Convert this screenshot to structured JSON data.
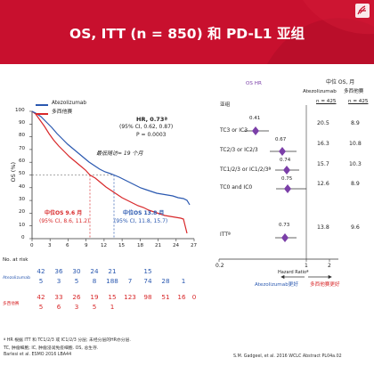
{
  "header": {
    "title": "OS, ITT (n = 850) 和 PD-L1 亚组",
    "bg_color": "#c8102e",
    "icon": "pdf-icon"
  },
  "km": {
    "legend": [
      {
        "label": "Atezolizumab",
        "color": "#2a58b0"
      },
      {
        "label": "多西他赛",
        "color": "#d8282a"
      }
    ],
    "hr_title": "HR, 0.73ª",
    "hr_ci": "(95% CI, 0.62, 0.87)",
    "hr_p": "P = 0.0003",
    "followup": "最低随访= 19 个月",
    "yaxis_label": "OS (%)",
    "yticks": [
      "100",
      "90",
      "80",
      "70",
      "60",
      "50",
      "40",
      "30",
      "20",
      "10",
      "0"
    ],
    "xticks": [
      "0",
      "3",
      "6",
      "9",
      "12",
      "15",
      "18",
      "21",
      "24",
      "27"
    ],
    "median_docetaxel_line1": "中位OS 9.6 月",
    "median_docetaxel_line2": "(95% CI, 8.6, 11.2)",
    "median_atezo_line1": "中位OS 13.8 月",
    "median_atezo_line2": "(95% CI, 11.8, 15.7)"
  },
  "risk": {
    "title": "No. at risk",
    "atezo_label": "Atezolizumab",
    "doc_label": "多西他赛",
    "atezo_row1": [
      "42",
      "36",
      "30",
      "24",
      "21",
      "15"
    ],
    "atezo_row2": [
      "5",
      "3",
      "5",
      "8",
      "188",
      "7",
      "74",
      "28",
      "1"
    ],
    "doc_row1": [
      "42",
      "33",
      "26",
      "19",
      "15",
      "123",
      "98",
      "51",
      "16",
      "0"
    ],
    "doc_row2": [
      "5",
      "6",
      "3",
      "5",
      "1"
    ]
  },
  "forest": {
    "os_hr_header": "OS HR",
    "median_header": "中位 OS, 月",
    "col_atezo": "Atezolizumab",
    "col_doc": "多西他赛",
    "n_atezo": "n = 425",
    "n_doc": "n = 425",
    "subgroup_header": "亚组",
    "rows": [
      {
        "label": "TC3 or IC3",
        "hr": "0.41",
        "atezo": "20.5",
        "doc": "8.9"
      },
      {
        "label": "TC2/3 or IC2/3",
        "hr": "0.67",
        "atezo": "16.3",
        "doc": "10.8"
      },
      {
        "label": "TC1/2/3 or IC1/2/3ª",
        "hr": "0.74",
        "atezo": "15.7",
        "doc": "10.3"
      },
      {
        "label": "TC0 and IC0",
        "hr": "0.75",
        "atezo": "12.6",
        "doc": "8.9"
      },
      {
        "label": "ITTª",
        "hr": "0.73",
        "atezo": "13.8",
        "doc": "9.6"
      }
    ],
    "xticks": [
      "0.2",
      "1",
      "2"
    ],
    "xlabel": "Hazard Ratioª",
    "favor_atezo": "Atezolizumab更好",
    "favor_doc": "多西他赛更好",
    "diamond_color": "#7b3fa8"
  },
  "footnotes": {
    "line1": "ª HR 根据 ITT 和 TC1/2/3 或 IC1/2/3 分层; 未经分层的HR亦分层.",
    "line2": "TC, 肿瘤细胞; IC, 肿瘤浸润免疫细胞. OS, 总生存.",
    "line3": "Barlesi et al. ESMO 2016 LBA44",
    "source": "S.M. Gadgeel, et al. 2016 WCLC Abstract PL04a.02"
  }
}
